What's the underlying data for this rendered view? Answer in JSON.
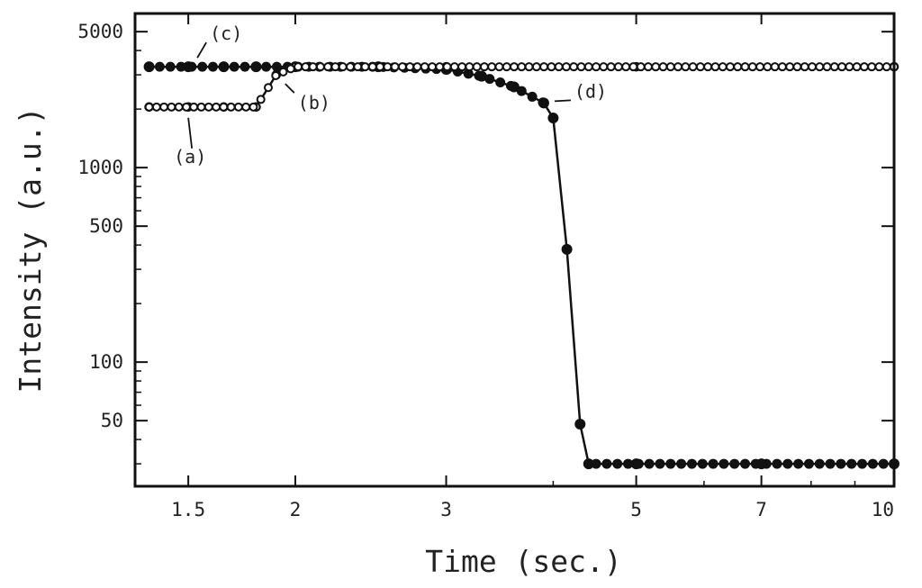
{
  "chart_data": {
    "type": "line",
    "title": "",
    "xlabel": "Time (sec.)",
    "ylabel": "Intensity (a.u.)",
    "x_scale": "log",
    "y_scale": "log",
    "xlim": [
      1.3,
      10
    ],
    "ylim": [
      23,
      6200
    ],
    "x_ticks": [
      1.5,
      2,
      3,
      5,
      7,
      10
    ],
    "x_tick_labels": [
      "1.5",
      "2",
      "3",
      "5",
      "7",
      "10"
    ],
    "y_ticks": [
      50,
      100,
      500,
      1000,
      5000
    ],
    "y_tick_labels": [
      "50",
      "100",
      "500",
      "1000",
      "5000"
    ],
    "grid": false,
    "legend": "none",
    "series": [
      {
        "marker": "open-circle",
        "x": [
          1.35,
          1.5,
          1.65,
          1.8,
          1.9,
          2.0,
          2.5,
          3.0,
          5.0,
          10.0
        ],
        "y": [
          2050,
          2050,
          2050,
          2050,
          3000,
          3300,
          3300,
          3300,
          3300,
          3300
        ]
      },
      {
        "marker": "filled-circle",
        "x": [
          1.35,
          1.5,
          1.65,
          1.8,
          2.0,
          2.5,
          3.0,
          3.3,
          3.6,
          3.9,
          4.0,
          4.15,
          4.3,
          4.4,
          5.0,
          7.0,
          10.0
        ],
        "y": [
          3300,
          3300,
          3300,
          3300,
          3300,
          3300,
          3200,
          2950,
          2600,
          2150,
          1800,
          380,
          48,
          30,
          30,
          30,
          30
        ]
      }
    ],
    "annotations": [
      {
        "text": "(a)",
        "x": 1.5,
        "y": 2050
      },
      {
        "text": "(b)",
        "x": 1.9,
        "y": 3000
      },
      {
        "text": "(c)",
        "x": 1.5,
        "y": 3300
      },
      {
        "text": "(d)",
        "x": 3.9,
        "y": 2150
      }
    ]
  }
}
